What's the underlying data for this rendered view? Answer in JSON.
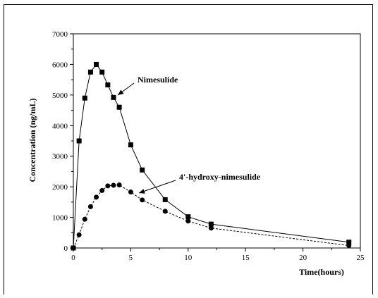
{
  "chart_data": {
    "type": "line",
    "xlabel": "Time(hours)",
    "ylabel": "Concentration (ng/mL)",
    "xlim": [
      0,
      25
    ],
    "ylim": [
      0,
      7000
    ],
    "xticks": [
      "0",
      "5",
      "10",
      "15",
      "20",
      "25"
    ],
    "yticks": [
      "0",
      "1000",
      "2000",
      "3000",
      "4000",
      "5000",
      "6000",
      "7000"
    ],
    "grid": false,
    "series": [
      {
        "name": "Nimesulide",
        "marker": "square",
        "line": "solid",
        "x": [
          0,
          0.5,
          1,
          1.5,
          2,
          2.5,
          3,
          3.5,
          4,
          5,
          6,
          8,
          10,
          12,
          24
        ],
        "y": [
          0,
          3500,
          4900,
          5750,
          6000,
          5750,
          5330,
          4920,
          4600,
          3370,
          2550,
          1580,
          1020,
          780,
          190
        ]
      },
      {
        "name": "4'-hydroxy-nimesulide",
        "marker": "circle",
        "line": "dashed",
        "x": [
          0,
          0.5,
          1,
          1.5,
          2,
          2.5,
          3,
          3.5,
          4,
          5,
          6,
          8,
          10,
          12,
          24
        ],
        "y": [
          0,
          430,
          940,
          1350,
          1660,
          1880,
          2030,
          2050,
          2060,
          1830,
          1570,
          1200,
          880,
          650,
          80
        ]
      }
    ],
    "annotations": [
      {
        "text": "Nimesulide",
        "points_to_series": 0
      },
      {
        "text": "4'-hydroxy-nimesulide",
        "points_to_series": 1
      }
    ]
  }
}
